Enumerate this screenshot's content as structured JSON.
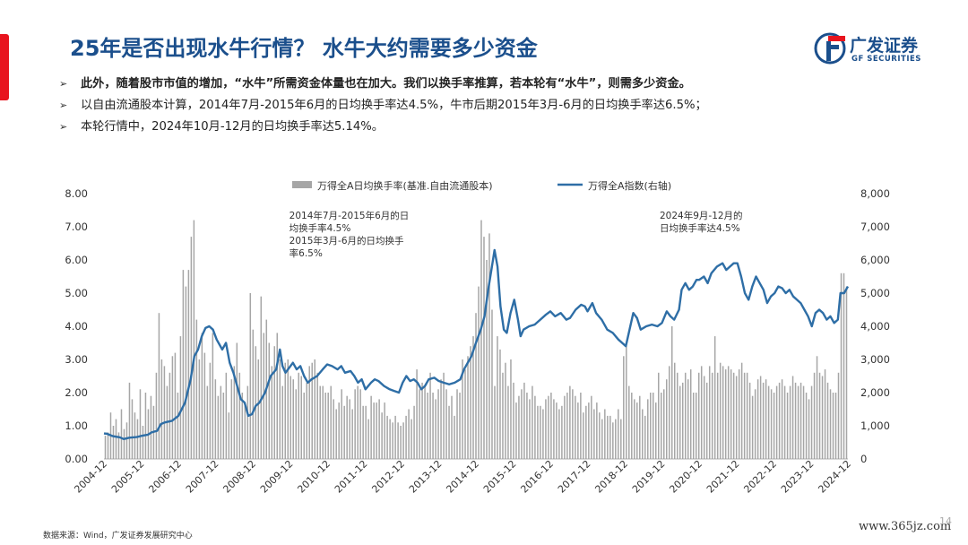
{
  "header": {
    "title": "25年是否出现水牛行情？ 水牛大约需要多少资金",
    "logo_cn": "广发证券",
    "logo_en": "GF SECURITIES",
    "brand_color": "#1b4f8c",
    "accent_color": "#e8141e"
  },
  "bullets": [
    {
      "text": "此外，随着股市市值的增加，“水牛”所需资金体量也在加大。我们以换手率推算，若本轮有“水牛”，则需多少资金。",
      "bold": true
    },
    {
      "text": "以自由流通股本计算，2014年7月-2015年6月的日均换手率达4.5%，牛市后期2015年3月-6月的日均换手率达6.5%；",
      "bold": false
    },
    {
      "text": "本轮行情中，2024年10月-12月的日均换手率达5.14%。",
      "bold": false
    }
  ],
  "bullet_marker": "➢",
  "chart_data": {
    "type": "bar+line",
    "legend": [
      {
        "name": "万得全A日均换手率(基准.自由流通股本)",
        "kind": "bar",
        "color": "#a6a6a6"
      },
      {
        "name": "万得全A指数(右轴)",
        "kind": "line",
        "color": "#2e6ea6"
      }
    ],
    "legend_position": "top",
    "x_ticks": [
      "2004-12",
      "2005-12",
      "2006-12",
      "2007-12",
      "2008-12",
      "2009-12",
      "2010-12",
      "2011-12",
      "2012-12",
      "2013-12",
      "2014-12",
      "2015-12",
      "2016-12",
      "2017-12",
      "2018-12",
      "2019-12",
      "2020-12",
      "2021-12",
      "2022-12",
      "2023-12",
      "2024-12"
    ],
    "y_left": {
      "range": [
        0,
        8
      ],
      "ticks": [
        "0.00",
        "1.00",
        "2.00",
        "3.00",
        "4.00",
        "5.00",
        "6.00",
        "7.00",
        "8.00"
      ]
    },
    "y_right": {
      "range": [
        0,
        8000
      ],
      "ticks": [
        "0",
        "1,000",
        "2,000",
        "3,000",
        "4,000",
        "5,000",
        "6,000",
        "7,000",
        "8,000"
      ]
    },
    "grid": false,
    "annotations": [
      {
        "lines": [
          "2014年7月-2015年6月的日",
          "均换手率4.5%",
          "2015年3月-6月的日均换手",
          "率6.5%"
        ],
        "x": 2009.9,
        "y": 7.25
      },
      {
        "lines": [
          "2024年9月-12月的",
          "日均换手率达4.5%"
        ],
        "x": 2019.86,
        "y": 7.25
      }
    ],
    "turnover_monthly": [
      0.7,
      0.8,
      1.4,
      1.0,
      1.2,
      0.8,
      1.5,
      0.9,
      1.1,
      2.3,
      1.8,
      1.4,
      1.2,
      2.1,
      1.0,
      2.0,
      1.5,
      1.9,
      1.6,
      2.6,
      4.4,
      3.0,
      2.8,
      2.2,
      2.6,
      3.1,
      3.2,
      2.0,
      3.7,
      5.7,
      5.2,
      5.7,
      6.7,
      7.2,
      4.2,
      3.0,
      3.8,
      3.2,
      2.2,
      2.9,
      3.8,
      2.4,
      1.9,
      2.2,
      2.0,
      2.6,
      1.4,
      2.4,
      2.8,
      3.5,
      2.6,
      2.0,
      1.6,
      2.2,
      5.0,
      3.9,
      3.4,
      3.0,
      4.9,
      3.8,
      4.2,
      3.5,
      2.8,
      3.4,
      3.8,
      3.0,
      2.2,
      2.9,
      3.0,
      2.5,
      2.4,
      2.1,
      2.6,
      2.5,
      2.0,
      2.3,
      2.8,
      2.9,
      3.0,
      2.6,
      2.2,
      2.2,
      2.0,
      2.0,
      2.2,
      1.8,
      1.5,
      1.7,
      2.1,
      1.6,
      1.9,
      1.8,
      1.5,
      2.1,
      2.2,
      2.1,
      1.6,
      1.6,
      1.2,
      1.9,
      1.7,
      1.7,
      1.8,
      1.4,
      1.7,
      1.3,
      1.2,
      1.1,
      1.3,
      1.1,
      1.0,
      1.1,
      1.3,
      1.5,
      1.2,
      1.6,
      2.7,
      2.1,
      2.3,
      2.2,
      2.0,
      2.6,
      2.0,
      1.8,
      2.1,
      2.4,
      2.6,
      2.1,
      1.6,
      1.9,
      1.3,
      2.1,
      2.0,
      3.0,
      2.7,
      3.1,
      3.4,
      3.7,
      4.4,
      5.2,
      7.2,
      6.7,
      6.0,
      6.8,
      4.5,
      2.2,
      3.7,
      3.3,
      2.6,
      2.9,
      2.2,
      3.0,
      2.3,
      1.7,
      1.9,
      2.1,
      2.3,
      2.0,
      1.8,
      2.2,
      1.9,
      1.6,
      1.6,
      1.5,
      1.8,
      1.9,
      2.0,
      1.8,
      1.7,
      1.5,
      1.6,
      1.9,
      2.0,
      2.2,
      2.1,
      1.9,
      1.7,
      2.0,
      1.4,
      1.6,
      1.7,
      1.9,
      1.5,
      1.7,
      1.4,
      1.2,
      1.5,
      1.3,
      1.3,
      1.1,
      1.2,
      1.5,
      1.2,
      3.1,
      3.4,
      2.2,
      2.0,
      1.8,
      1.7,
      1.9,
      1.5,
      1.3,
      1.8,
      2.0,
      2.0,
      1.7,
      2.6,
      2.0,
      2.1,
      2.4,
      2.8,
      4.0,
      2.9,
      2.6,
      2.2,
      2.3,
      2.6,
      2.4,
      2.7,
      2.0,
      2.0,
      2.6,
      2.8,
      2.5,
      2.3,
      2.8,
      2.6,
      3.7,
      2.6,
      2.9,
      2.8,
      2.7,
      2.8,
      2.7,
      2.6,
      2.5,
      2.7,
      2.9,
      2.6,
      2.6,
      2.3,
      1.9,
      2.1,
      2.4,
      2.5,
      2.3,
      2.4,
      2.2,
      2.1,
      2.0,
      2.2,
      2.3,
      2.4,
      2.2,
      2.0,
      2.2,
      2.5,
      2.3,
      2.2,
      2.3,
      2.2,
      2.0,
      1.8,
      2.2,
      2.6,
      3.1,
      2.6,
      2.5,
      2.7,
      2.3,
      2.1,
      2.0,
      2.0,
      2.6,
      5.6,
      5.6,
      5.2
    ],
    "index_points": [
      [
        2004.92,
        770
      ],
      [
        2005.0,
        760
      ],
      [
        2005.15,
        690
      ],
      [
        2005.35,
        650
      ],
      [
        2005.45,
        600
      ],
      [
        2005.6,
        640
      ],
      [
        2005.8,
        660
      ],
      [
        2005.95,
        700
      ],
      [
        2006.1,
        730
      ],
      [
        2006.2,
        800
      ],
      [
        2006.35,
        850
      ],
      [
        2006.45,
        1050
      ],
      [
        2006.55,
        1100
      ],
      [
        2006.75,
        1150
      ],
      [
        2006.92,
        1300
      ],
      [
        2007.1,
        1700
      ],
      [
        2007.25,
        2400
      ],
      [
        2007.35,
        3100
      ],
      [
        2007.45,
        3300
      ],
      [
        2007.55,
        3700
      ],
      [
        2007.65,
        3950
      ],
      [
        2007.75,
        4000
      ],
      [
        2007.85,
        3900
      ],
      [
        2007.95,
        3600
      ],
      [
        2008.1,
        3300
      ],
      [
        2008.2,
        3500
      ],
      [
        2008.3,
        2900
      ],
      [
        2008.4,
        2600
      ],
      [
        2008.5,
        2200
      ],
      [
        2008.6,
        1800
      ],
      [
        2008.7,
        1700
      ],
      [
        2008.8,
        1300
      ],
      [
        2008.9,
        1350
      ],
      [
        2009.0,
        1600
      ],
      [
        2009.1,
        1700
      ],
      [
        2009.25,
        2000
      ],
      [
        2009.4,
        2500
      ],
      [
        2009.55,
        2700
      ],
      [
        2009.65,
        3300
      ],
      [
        2009.72,
        2800
      ],
      [
        2009.8,
        2600
      ],
      [
        2009.9,
        2750
      ],
      [
        2010.0,
        2900
      ],
      [
        2010.1,
        2700
      ],
      [
        2010.2,
        2800
      ],
      [
        2010.3,
        2500
      ],
      [
        2010.4,
        2300
      ],
      [
        2010.5,
        2400
      ],
      [
        2010.65,
        2500
      ],
      [
        2010.8,
        2700
      ],
      [
        2010.92,
        2850
      ],
      [
        2011.05,
        2800
      ],
      [
        2011.2,
        2700
      ],
      [
        2011.3,
        2800
      ],
      [
        2011.4,
        2600
      ],
      [
        2011.55,
        2650
      ],
      [
        2011.65,
        2500
      ],
      [
        2011.75,
        2300
      ],
      [
        2011.85,
        2400
      ],
      [
        2011.95,
        2100
      ],
      [
        2012.1,
        2300
      ],
      [
        2012.2,
        2400
      ],
      [
        2012.3,
        2350
      ],
      [
        2012.45,
        2200
      ],
      [
        2012.6,
        2100
      ],
      [
        2012.72,
        2050
      ],
      [
        2012.85,
        2000
      ],
      [
        2012.95,
        2300
      ],
      [
        2013.05,
        2500
      ],
      [
        2013.15,
        2350
      ],
      [
        2013.25,
        2400
      ],
      [
        2013.35,
        2300
      ],
      [
        2013.45,
        2100
      ],
      [
        2013.55,
        2200
      ],
      [
        2013.65,
        2400
      ],
      [
        2013.8,
        2450
      ],
      [
        2013.92,
        2350
      ],
      [
        2014.05,
        2300
      ],
      [
        2014.2,
        2250
      ],
      [
        2014.35,
        2300
      ],
      [
        2014.5,
        2400
      ],
      [
        2014.6,
        2700
      ],
      [
        2014.7,
        2900
      ],
      [
        2014.8,
        3100
      ],
      [
        2014.92,
        3500
      ],
      [
        2015.05,
        3900
      ],
      [
        2015.15,
        4300
      ],
      [
        2015.25,
        5100
      ],
      [
        2015.35,
        5800
      ],
      [
        2015.42,
        6300
      ],
      [
        2015.5,
        5800
      ],
      [
        2015.58,
        4600
      ],
      [
        2015.67,
        3900
      ],
      [
        2015.75,
        3800
      ],
      [
        2015.85,
        4400
      ],
      [
        2015.95,
        4800
      ],
      [
        2016.05,
        4200
      ],
      [
        2016.12,
        3700
      ],
      [
        2016.2,
        3900
      ],
      [
        2016.35,
        4000
      ],
      [
        2016.5,
        4050
      ],
      [
        2016.65,
        4200
      ],
      [
        2016.8,
        4350
      ],
      [
        2016.92,
        4450
      ],
      [
        2017.05,
        4300
      ],
      [
        2017.2,
        4400
      ],
      [
        2017.35,
        4200
      ],
      [
        2017.45,
        4250
      ],
      [
        2017.6,
        4500
      ],
      [
        2017.75,
        4650
      ],
      [
        2017.85,
        4600
      ],
      [
        2017.92,
        4450
      ],
      [
        2018.05,
        4700
      ],
      [
        2018.15,
        4400
      ],
      [
        2018.3,
        4200
      ],
      [
        2018.45,
        3900
      ],
      [
        2018.6,
        3800
      ],
      [
        2018.75,
        3600
      ],
      [
        2018.85,
        3500
      ],
      [
        2018.95,
        3400
      ],
      [
        2019.05,
        3900
      ],
      [
        2019.15,
        4400
      ],
      [
        2019.25,
        4250
      ],
      [
        2019.35,
        3900
      ],
      [
        2019.5,
        4000
      ],
      [
        2019.65,
        4050
      ],
      [
        2019.8,
        4000
      ],
      [
        2019.92,
        4100
      ],
      [
        2020.05,
        4450
      ],
      [
        2020.15,
        4300
      ],
      [
        2020.25,
        4200
      ],
      [
        2020.38,
        4500
      ],
      [
        2020.45,
        5100
      ],
      [
        2020.55,
        5300
      ],
      [
        2020.65,
        5100
      ],
      [
        2020.75,
        5200
      ],
      [
        2020.85,
        5400
      ],
      [
        2020.92,
        5400
      ],
      [
        2021.05,
        5500
      ],
      [
        2021.15,
        5300
      ],
      [
        2021.25,
        5600
      ],
      [
        2021.4,
        5800
      ],
      [
        2021.55,
        5900
      ],
      [
        2021.65,
        5700
      ],
      [
        2021.75,
        5800
      ],
      [
        2021.85,
        5900
      ],
      [
        2021.95,
        5900
      ],
      [
        2022.05,
        5500
      ],
      [
        2022.15,
        5000
      ],
      [
        2022.25,
        4800
      ],
      [
        2022.35,
        5200
      ],
      [
        2022.45,
        5500
      ],
      [
        2022.55,
        5300
      ],
      [
        2022.65,
        5100
      ],
      [
        2022.75,
        4700
      ],
      [
        2022.85,
        4900
      ],
      [
        2022.95,
        5000
      ],
      [
        2023.05,
        5200
      ],
      [
        2023.15,
        5150
      ],
      [
        2023.25,
        5000
      ],
      [
        2023.35,
        5100
      ],
      [
        2023.45,
        4900
      ],
      [
        2023.55,
        4800
      ],
      [
        2023.65,
        4700
      ],
      [
        2023.75,
        4500
      ],
      [
        2023.85,
        4300
      ],
      [
        2023.95,
        4000
      ],
      [
        2024.05,
        4400
      ],
      [
        2024.15,
        4500
      ],
      [
        2024.25,
        4400
      ],
      [
        2024.35,
        4200
      ],
      [
        2024.45,
        4300
      ],
      [
        2024.55,
        4100
      ],
      [
        2024.65,
        4200
      ],
      [
        2024.72,
        5000
      ],
      [
        2024.82,
        5000
      ],
      [
        2024.92,
        5200
      ]
    ]
  },
  "footer": {
    "source": "数据来源：Wind，广发证券发展研究中心",
    "watermark": "www.365jz.com",
    "page_number": "14"
  }
}
